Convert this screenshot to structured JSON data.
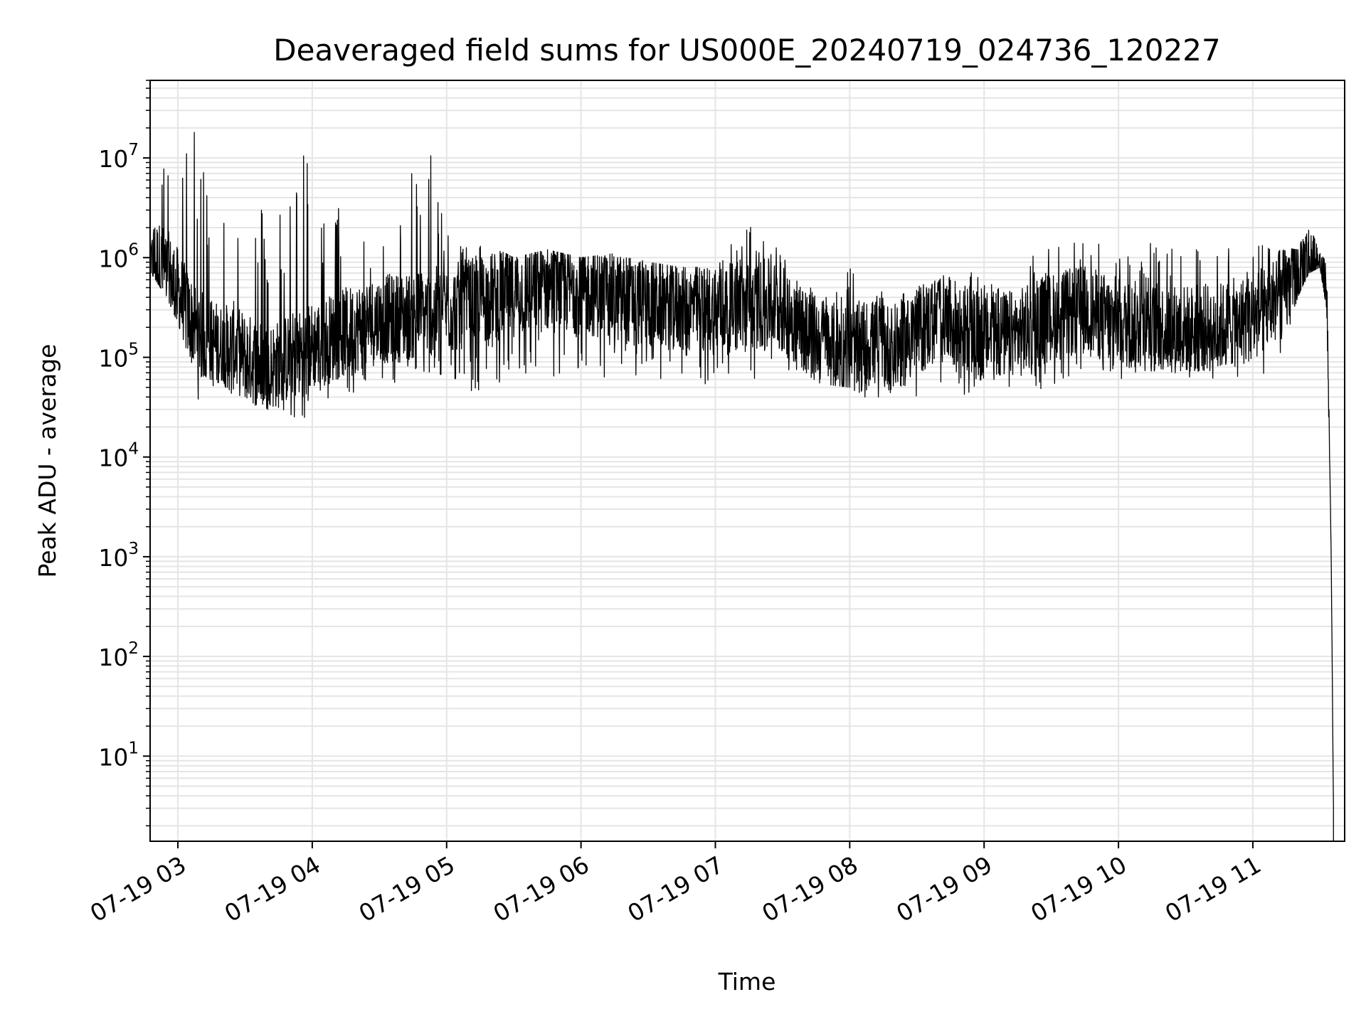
{
  "chart_data": {
    "type": "line",
    "title": "Deaveraged field sums for US000E_20240719_024736_120227",
    "xlabel": "Time",
    "ylabel": "Peak ADU - average",
    "yscale": "log",
    "xlim": [
      "2024-07-19 02:47:36",
      "2024-07-19 11:41:00"
    ],
    "ylim": [
      1.4,
      60000000
    ],
    "x_tick_labels": [
      "07-19 03",
      "07-19 04",
      "07-19 05",
      "07-19 06",
      "07-19 07",
      "07-19 08",
      "07-19 09",
      "07-19 10",
      "07-19 11"
    ],
    "y_tick_labels": [
      {
        "base": "10",
        "exp": "1"
      },
      {
        "base": "10",
        "exp": "2"
      },
      {
        "base": "10",
        "exp": "3"
      },
      {
        "base": "10",
        "exp": "4"
      },
      {
        "base": "10",
        "exp": "5"
      },
      {
        "base": "10",
        "exp": "6"
      },
      {
        "base": "10",
        "exp": "7"
      }
    ],
    "grid": true,
    "grid_color": "#e5e5e5",
    "line_color": "#000000",
    "series": [
      {
        "x": [
          "2024-07-19 02:48:00",
          "2024-07-19 02:55:00",
          "2024-07-19 03:00:00",
          "2024-07-19 03:05:00",
          "2024-07-19 03:10:00",
          "2024-07-19 03:15:00",
          "2024-07-19 03:20:00",
          "2024-07-19 03:25:00",
          "2024-07-19 03:30:00",
          "2024-07-19 03:35:00",
          "2024-07-19 03:40:00",
          "2024-07-19 03:45:00",
          "2024-07-19 03:50:00",
          "2024-07-19 03:55:00",
          "2024-07-19 04:00:00",
          "2024-07-19 04:10:00",
          "2024-07-19 04:20:00",
          "2024-07-19 04:30:00",
          "2024-07-19 04:40:00",
          "2024-07-19 04:50:00",
          "2024-07-19 05:00:00",
          "2024-07-19 05:15:00",
          "2024-07-19 05:30:00",
          "2024-07-19 05:45:00",
          "2024-07-19 06:00:00",
          "2024-07-19 06:15:00",
          "2024-07-19 06:30:00",
          "2024-07-19 06:45:00",
          "2024-07-19 07:00:00",
          "2024-07-19 07:15:00",
          "2024-07-19 07:25:00",
          "2024-07-19 07:35:00",
          "2024-07-19 07:45:00",
          "2024-07-19 08:00:00",
          "2024-07-19 08:10:00",
          "2024-07-19 08:20:00",
          "2024-07-19 08:30:00",
          "2024-07-19 08:40:00",
          "2024-07-19 08:50:00",
          "2024-07-19 09:00:00",
          "2024-07-19 09:15:00",
          "2024-07-19 09:30:00",
          "2024-07-19 09:45:00",
          "2024-07-19 10:00:00",
          "2024-07-19 10:15:00",
          "2024-07-19 10:30:00",
          "2024-07-19 10:45:00",
          "2024-07-19 11:00:00",
          "2024-07-19 11:10:00",
          "2024-07-19 11:20:00",
          "2024-07-19 11:25:00",
          "2024-07-19 11:30:00",
          "2024-07-19 11:33:00",
          "2024-07-19 11:35:00",
          "2024-07-19 11:36:00"
        ],
        "y": [
          1000000,
          700000,
          450000,
          250000,
          170000,
          140000,
          120000,
          130000,
          100000,
          90000,
          80000,
          85000,
          100000,
          110000,
          130000,
          160000,
          200000,
          240000,
          250000,
          280000,
          300000,
          380000,
          450000,
          500000,
          480000,
          400000,
          350000,
          320000,
          300000,
          330000,
          350000,
          250000,
          150000,
          110000,
          140000,
          120000,
          180000,
          250000,
          200000,
          160000,
          170000,
          250000,
          300000,
          220000,
          200000,
          190000,
          200000,
          250000,
          350000,
          650000,
          850000,
          900000,
          500000,
          1000,
          3
        ],
        "envelope_high": [
          1200000,
          22000000,
          19000000,
          25000000,
          13000000,
          5000000,
          9000000,
          4000000,
          13000000,
          4000000,
          3000000,
          4000000,
          5000000,
          20000000,
          6000000,
          3000000,
          6000000,
          1500000,
          2500000,
          27000000,
          2500000,
          1500000,
          1000000,
          1200000,
          1000000,
          1100000,
          900000,
          800000,
          800000,
          3000000,
          2200000,
          600000,
          500000,
          900000,
          500000,
          400000,
          500000,
          700000,
          800000,
          600000,
          1000000,
          1300000,
          1500000,
          1500000,
          1500000,
          1500000,
          1400000,
          1400000,
          1300000,
          1200000,
          2200000,
          1100000,
          900000,
          1000,
          3
        ],
        "envelope_low": [
          700000,
          400000,
          220000,
          100000,
          30000,
          50000,
          60000,
          30000,
          40000,
          30000,
          30000,
          30000,
          25000,
          12000,
          30000,
          40000,
          30000,
          60000,
          40000,
          60000,
          60000,
          40000,
          60000,
          60000,
          60000,
          60000,
          60000,
          60000,
          50000,
          60000,
          60000,
          55000,
          55000,
          50000,
          35000,
          45000,
          40000,
          45000,
          40000,
          45000,
          50000,
          45000,
          80000,
          60000,
          60000,
          60000,
          60000,
          60000,
          60000,
          400000,
          700000,
          800000,
          300000,
          1000,
          3
        ]
      }
    ]
  }
}
